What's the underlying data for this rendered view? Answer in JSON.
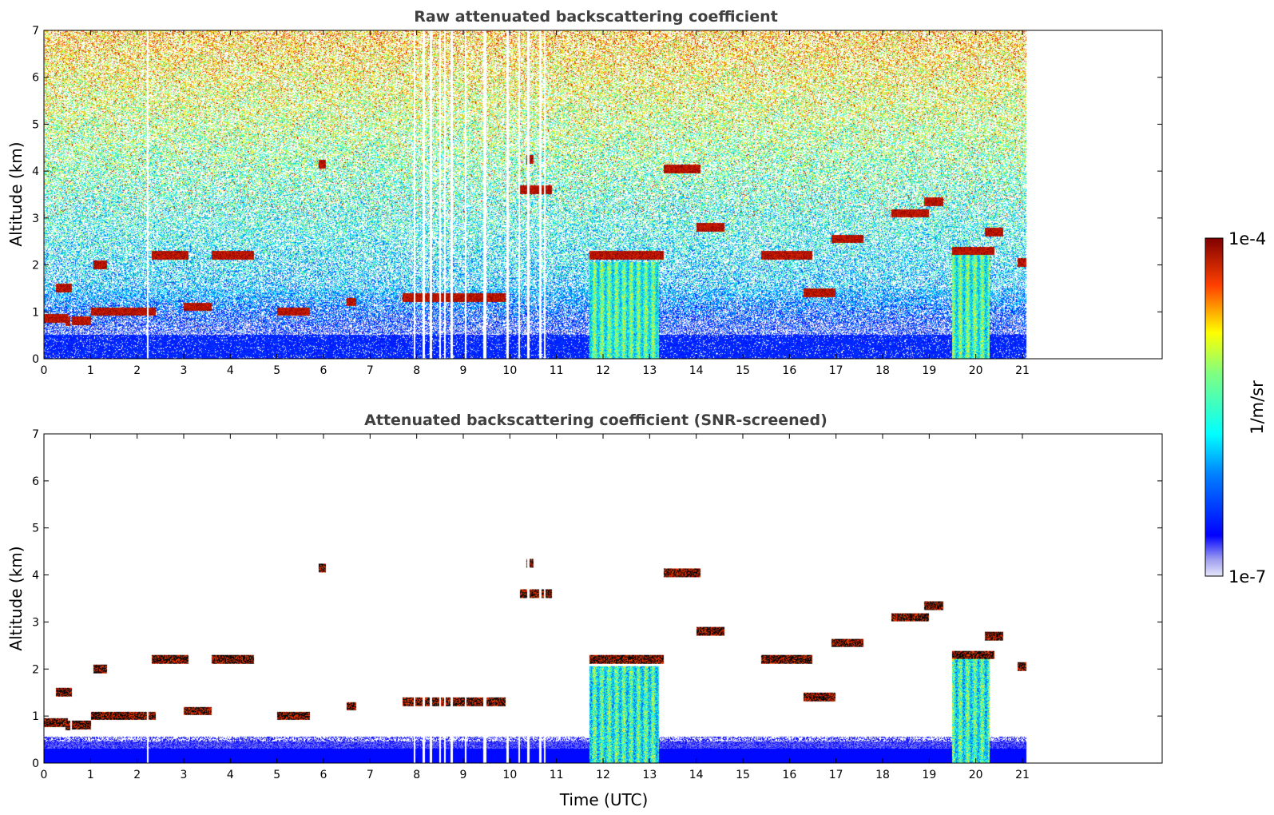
{
  "chart_data": {
    "type": "heatmap",
    "panels": [
      {
        "id": "raw",
        "title": "Raw attenuated backscattering coefficient",
        "ylabel": "Altitude (km)",
        "xlabel": "",
        "xlim": [
          0,
          24
        ],
        "ylim": [
          0,
          7
        ],
        "x_ticks": [
          0,
          1,
          2,
          3,
          4,
          5,
          6,
          7,
          8,
          9,
          10,
          11,
          12,
          13,
          14,
          15,
          16,
          17,
          18,
          19,
          20,
          21
        ],
        "y_ticks": [
          0,
          1,
          2,
          3,
          4,
          5,
          6,
          7
        ],
        "data_extent_x": [
          0,
          21.1
        ]
      },
      {
        "id": "snr",
        "title": "Attenuated backscattering coefficient (SNR-screened)",
        "ylabel": "Altitude (km)",
        "xlabel": "Time (UTC)",
        "xlim": [
          0,
          24
        ],
        "ylim": [
          0,
          7
        ],
        "x_ticks": [
          0,
          1,
          2,
          3,
          4,
          5,
          6,
          7,
          8,
          9,
          10,
          11,
          12,
          13,
          14,
          15,
          16,
          17,
          18,
          19,
          20,
          21
        ],
        "y_ticks": [
          0,
          1,
          2,
          3,
          4,
          5,
          6,
          7
        ],
        "data_extent_x": [
          0,
          21.1
        ]
      }
    ],
    "colorbar": {
      "label": "1/m/sr",
      "min_label": "1e-7",
      "max_label": "1e-4",
      "scale": "log",
      "colormap": "jet"
    },
    "features": {
      "cloud_layers": [
        {
          "x": [
            0,
            0.5
          ],
          "y": 0.85
        },
        {
          "x": 0.5,
          "y": [
            0.7,
            0.9
          ]
        },
        {
          "x": [
            0.6,
            1.0
          ],
          "y": 0.8
        },
        {
          "x": [
            1.0,
            2.4
          ],
          "y": 1.0
        },
        {
          "x": [
            0.25,
            0.6
          ],
          "y": 1.5
        },
        {
          "x": [
            1.05,
            1.35
          ],
          "y": 2.0
        },
        {
          "x": [
            2.3,
            3.1
          ],
          "y": 2.2
        },
        {
          "x": [
            3.6,
            4.5
          ],
          "y": 2.2
        },
        {
          "x": [
            3.0,
            3.6
          ],
          "y": 1.1
        },
        {
          "x": [
            5.0,
            5.7
          ],
          "y": 1.0
        },
        {
          "x": [
            5.9,
            6.05
          ],
          "y": 4.15
        },
        {
          "x": [
            6.5,
            6.7
          ],
          "y": 1.2
        },
        {
          "x": [
            7.7,
            9.6
          ],
          "y": 1.3
        },
        {
          "x": [
            9.6,
            9.9
          ],
          "y": 1.3
        },
        {
          "x": [
            10.2,
            10.9
          ],
          "y": 3.6
        },
        {
          "x": [
            10.35,
            10.5
          ],
          "y": 4.25
        },
        {
          "x": [
            11.7,
            13.3
          ],
          "y": 2.2
        },
        {
          "x": [
            13.3,
            14.1
          ],
          "y": 4.05
        },
        {
          "x": [
            14.0,
            14.6
          ],
          "y": 2.8
        },
        {
          "x": [
            15.4,
            16.5
          ],
          "y": 2.2
        },
        {
          "x": [
            16.3,
            17.0
          ],
          "y": 1.4
        },
        {
          "x": [
            16.9,
            17.6
          ],
          "y": 2.55
        },
        {
          "x": [
            18.2,
            19.0
          ],
          "y": 3.1
        },
        {
          "x": [
            18.9,
            19.3
          ],
          "y": 3.35
        },
        {
          "x": [
            19.5,
            20.4
          ],
          "y": 2.3
        },
        {
          "x": [
            20.2,
            20.6
          ],
          "y": 2.7
        },
        {
          "x": [
            20.9,
            21.1
          ],
          "y": 2.05
        }
      ],
      "precipitation_shafts": [
        {
          "x": [
            11.7,
            13.2
          ],
          "top": 2.1
        },
        {
          "x": [
            19.5,
            20.3
          ],
          "top": 2.4
        }
      ],
      "gaps": [
        2.22,
        7.95,
        8.15,
        8.3,
        8.5,
        8.6,
        8.75,
        9.05,
        9.45,
        9.47,
        9.95,
        10.2,
        10.4,
        10.65,
        10.75
      ]
    }
  }
}
